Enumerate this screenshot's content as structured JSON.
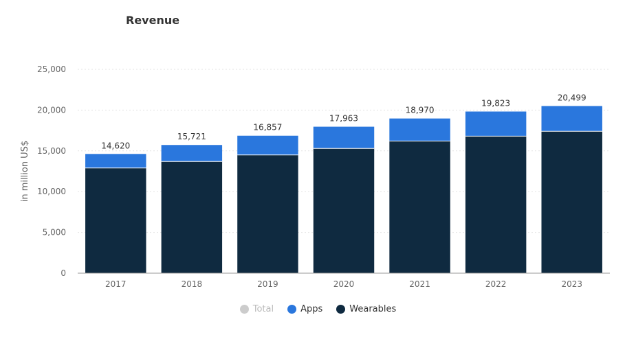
{
  "chart_data": {
    "type": "bar",
    "stacked": true,
    "title": "Revenue",
    "ylabel": "in million US$",
    "xlabel": "",
    "categories": [
      "2017",
      "2018",
      "2019",
      "2020",
      "2021",
      "2022",
      "2023"
    ],
    "series": [
      {
        "name": "Wearables",
        "color": "#0f2a40",
        "values": [
          12900,
          13700,
          14500,
          15300,
          16200,
          16800,
          17400
        ]
      },
      {
        "name": "Apps",
        "color": "#2a77dd",
        "values": [
          1720,
          2021,
          2357,
          2663,
          2770,
          3023,
          3099
        ]
      }
    ],
    "totals": [
      14620,
      15721,
      16857,
      17963,
      18970,
      19823,
      20499
    ],
    "total_labels": [
      "14,620",
      "15,721",
      "16,857",
      "17,963",
      "18,970",
      "19,823",
      "20,499"
    ],
    "ylim": [
      0,
      25000
    ],
    "yticks": [
      0,
      5000,
      10000,
      15000,
      20000,
      25000
    ],
    "ytick_labels": [
      "0",
      "5,000",
      "10,000",
      "15,000",
      "20,000",
      "25,000"
    ],
    "grid": true,
    "legend": {
      "position": "bottom",
      "items": [
        {
          "label": "Total",
          "color": "#cccccc",
          "active": false
        },
        {
          "label": "Apps",
          "color": "#2a77dd",
          "active": true
        },
        {
          "label": "Wearables",
          "color": "#0f2a40",
          "active": true
        }
      ]
    }
  }
}
